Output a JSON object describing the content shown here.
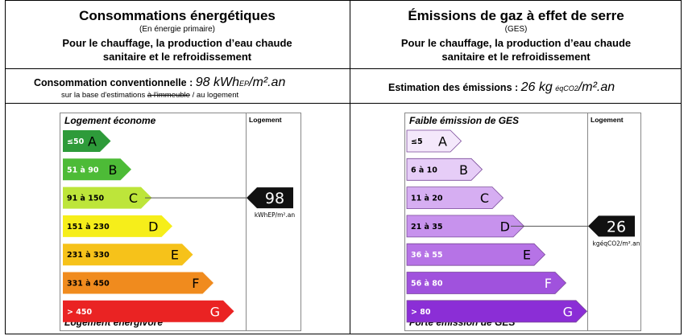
{
  "energy": {
    "title": "Consommations énergétiques",
    "subtitle": "(En énergie primaire)",
    "desc_line1": "Pour le chauffage, la production d’eau chaude",
    "desc_line2": "sanitaire et le refroidissement",
    "conso_label": "Consommation conventionnelle :",
    "conso_value": "98 kWh",
    "conso_sub": "EP",
    "conso_unit": "/m².an",
    "base_prefix": "sur la base d'estimations ",
    "base_strike": "à l'immeuble",
    "base_suffix": " / au logement",
    "top_caption": "Logement économe",
    "bottom_caption": "Logement énergivore",
    "column_title": "Logement",
    "indicator_value": "98",
    "indicator_unit": "kWhEP/m².an",
    "active_class": "C",
    "classes": [
      {
        "range": "≤50",
        "letter": "A",
        "color": "#2e9b3a"
      },
      {
        "range": "51 à 90",
        "letter": "B",
        "color": "#4dbb37"
      },
      {
        "range": "91 à 150",
        "letter": "C",
        "color": "#bde53a"
      },
      {
        "range": "151 à 230",
        "letter": "D",
        "color": "#f6ee1a"
      },
      {
        "range": "231 à 330",
        "letter": "E",
        "color": "#f6c21a"
      },
      {
        "range": "331 à 450",
        "letter": "F",
        "color": "#f08b1e"
      },
      {
        "range": "> 450",
        "letter": "G",
        "color": "#ea2323"
      }
    ]
  },
  "ges": {
    "title": "Émissions de gaz à effet de serre",
    "subtitle": "(GES)",
    "desc_line1": "Pour le chauffage, la production d’eau chaude",
    "desc_line2": "sanitaire et le refroidissement",
    "estim_label": "Estimation des émissions :",
    "estim_value": "26 kg",
    "estim_sub": "éqCO2",
    "estim_unit": "/m².an",
    "top_caption": "Faible émission de GES",
    "bottom_caption": "Forte émission de GES",
    "column_title": "Logement",
    "indicator_value": "26",
    "indicator_unit": "kgéqCO2/m².an",
    "active_class": "D",
    "classes": [
      {
        "range": "≤5",
        "letter": "A",
        "color": "#f4e8fb"
      },
      {
        "range": "6 à 10",
        "letter": "B",
        "color": "#e6cdf7"
      },
      {
        "range": "11 à 20",
        "letter": "C",
        "color": "#d6aef2"
      },
      {
        "range": "21 à 35",
        "letter": "D",
        "color": "#c792ed"
      },
      {
        "range": "36 à 55",
        "letter": "E",
        "color": "#b673e6"
      },
      {
        "range": "56 à 80",
        "letter": "F",
        "color": "#a052dd"
      },
      {
        "range": "> 80",
        "letter": "G",
        "color": "#8b2ed6"
      }
    ]
  }
}
